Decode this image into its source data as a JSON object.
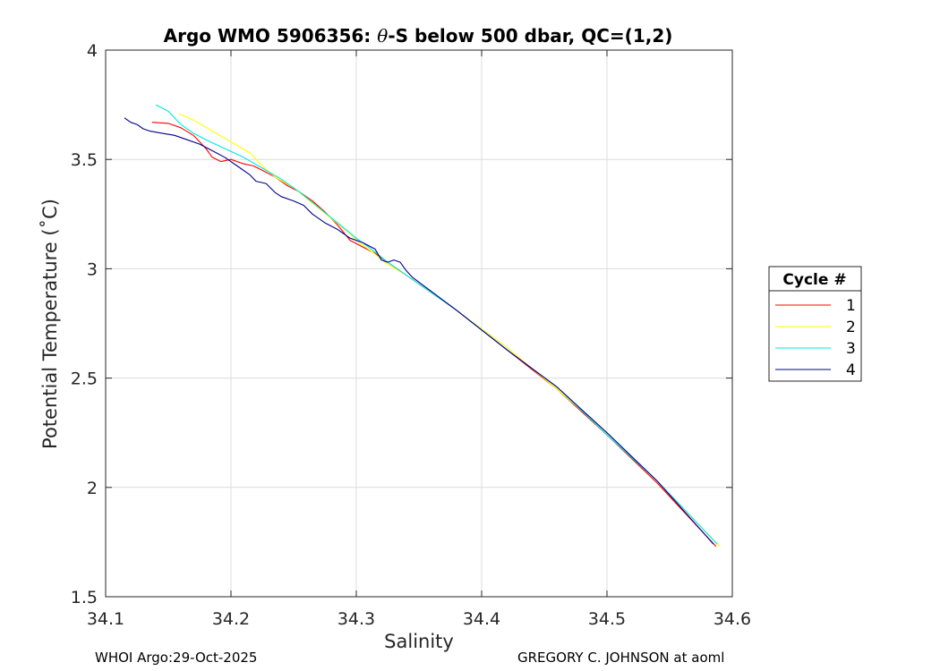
{
  "chart_data": {
    "type": "line",
    "title_prefix": "Argo WMO 5906356: ",
    "title_theta": "θ",
    "title_suffix": "-S below 500 dbar,  QC=(1,2)",
    "xlabel": "Salinity",
    "ylabel": "Potential Temperature (˚C)",
    "xlim": [
      34.1,
      34.6
    ],
    "ylim": [
      1.5,
      4.0
    ],
    "xticks": [
      "34.1",
      "34.2",
      "34.3",
      "34.4",
      "34.5",
      "34.6"
    ],
    "yticks": [
      "1.5",
      "2",
      "2.5",
      "3",
      "3.5",
      "4"
    ],
    "grid": true,
    "legend": {
      "title": "Cycle #",
      "placement": "outside-right"
    },
    "series": [
      {
        "name": "1",
        "color": "#ff0000",
        "points": [
          [
            34.137,
            3.67
          ],
          [
            34.15,
            3.665
          ],
          [
            34.16,
            3.645
          ],
          [
            34.17,
            3.61
          ],
          [
            34.18,
            3.55
          ],
          [
            34.185,
            3.51
          ],
          [
            34.192,
            3.49
          ],
          [
            34.2,
            3.5
          ],
          [
            34.21,
            3.48
          ],
          [
            34.218,
            3.47
          ],
          [
            34.225,
            3.45
          ],
          [
            34.235,
            3.42
          ],
          [
            34.245,
            3.38
          ],
          [
            34.255,
            3.35
          ],
          [
            34.265,
            3.31
          ],
          [
            34.275,
            3.26
          ],
          [
            34.285,
            3.2
          ],
          [
            34.295,
            3.13
          ],
          [
            34.305,
            3.1
          ],
          [
            34.315,
            3.07
          ],
          [
            34.325,
            3.03
          ],
          [
            34.34,
            2.97
          ],
          [
            34.38,
            2.81
          ],
          [
            34.42,
            2.63
          ],
          [
            34.46,
            2.45
          ],
          [
            34.5,
            2.24
          ],
          [
            34.54,
            2.02
          ],
          [
            34.587,
            1.73
          ]
        ]
      },
      {
        "name": "2",
        "color": "#ffff00",
        "points": [
          [
            34.158,
            3.71
          ],
          [
            34.17,
            3.68
          ],
          [
            34.185,
            3.63
          ],
          [
            34.2,
            3.58
          ],
          [
            34.215,
            3.53
          ],
          [
            34.225,
            3.47
          ],
          [
            34.235,
            3.42
          ],
          [
            34.25,
            3.37
          ],
          [
            34.265,
            3.3
          ],
          [
            34.28,
            3.23
          ],
          [
            34.295,
            3.16
          ],
          [
            34.302,
            3.12
          ],
          [
            34.312,
            3.08
          ],
          [
            34.325,
            3.02
          ],
          [
            34.34,
            2.97
          ],
          [
            34.38,
            2.81
          ],
          [
            34.42,
            2.64
          ],
          [
            34.46,
            2.45
          ],
          [
            34.5,
            2.25
          ],
          [
            34.54,
            2.03
          ],
          [
            34.59,
            1.73
          ]
        ]
      },
      {
        "name": "3",
        "color": "#00e5e5",
        "points": [
          [
            34.14,
            3.75
          ],
          [
            34.15,
            3.72
          ],
          [
            34.16,
            3.66
          ],
          [
            34.17,
            3.62
          ],
          [
            34.18,
            3.59
          ],
          [
            34.195,
            3.55
          ],
          [
            34.21,
            3.51
          ],
          [
            34.225,
            3.46
          ],
          [
            34.24,
            3.41
          ],
          [
            34.255,
            3.35
          ],
          [
            34.27,
            3.28
          ],
          [
            34.285,
            3.21
          ],
          [
            34.3,
            3.14
          ],
          [
            34.312,
            3.09
          ],
          [
            34.325,
            3.03
          ],
          [
            34.34,
            2.97
          ],
          [
            34.38,
            2.81
          ],
          [
            34.42,
            2.63
          ],
          [
            34.46,
            2.46
          ],
          [
            34.5,
            2.24
          ],
          [
            34.54,
            2.03
          ],
          [
            34.588,
            1.74
          ]
        ]
      },
      {
        "name": "4",
        "color": "#00008b",
        "points": [
          [
            34.115,
            3.69
          ],
          [
            34.12,
            3.67
          ],
          [
            34.125,
            3.66
          ],
          [
            34.13,
            3.64
          ],
          [
            34.135,
            3.63
          ],
          [
            34.145,
            3.62
          ],
          [
            34.155,
            3.61
          ],
          [
            34.165,
            3.59
          ],
          [
            34.175,
            3.57
          ],
          [
            34.185,
            3.54
          ],
          [
            34.195,
            3.51
          ],
          [
            34.205,
            3.47
          ],
          [
            34.215,
            3.43
          ],
          [
            34.22,
            3.4
          ],
          [
            34.228,
            3.39
          ],
          [
            34.235,
            3.35
          ],
          [
            34.24,
            3.33
          ],
          [
            34.25,
            3.31
          ],
          [
            34.258,
            3.29
          ],
          [
            34.265,
            3.25
          ],
          [
            34.275,
            3.21
          ],
          [
            34.285,
            3.18
          ],
          [
            34.295,
            3.14
          ],
          [
            34.305,
            3.12
          ],
          [
            34.315,
            3.09
          ],
          [
            34.318,
            3.06
          ],
          [
            34.32,
            3.04
          ],
          [
            34.325,
            3.03
          ],
          [
            34.33,
            3.04
          ],
          [
            34.335,
            3.03
          ],
          [
            34.34,
            2.99
          ],
          [
            34.345,
            2.96
          ],
          [
            34.38,
            2.81
          ],
          [
            34.42,
            2.63
          ],
          [
            34.46,
            2.46
          ],
          [
            34.5,
            2.25
          ],
          [
            34.54,
            2.03
          ],
          [
            34.585,
            1.74
          ]
        ]
      }
    ]
  },
  "footer": {
    "left": "WHOI Argo:29-Oct-2025",
    "right": "GREGORY C. JOHNSON at aoml"
  }
}
